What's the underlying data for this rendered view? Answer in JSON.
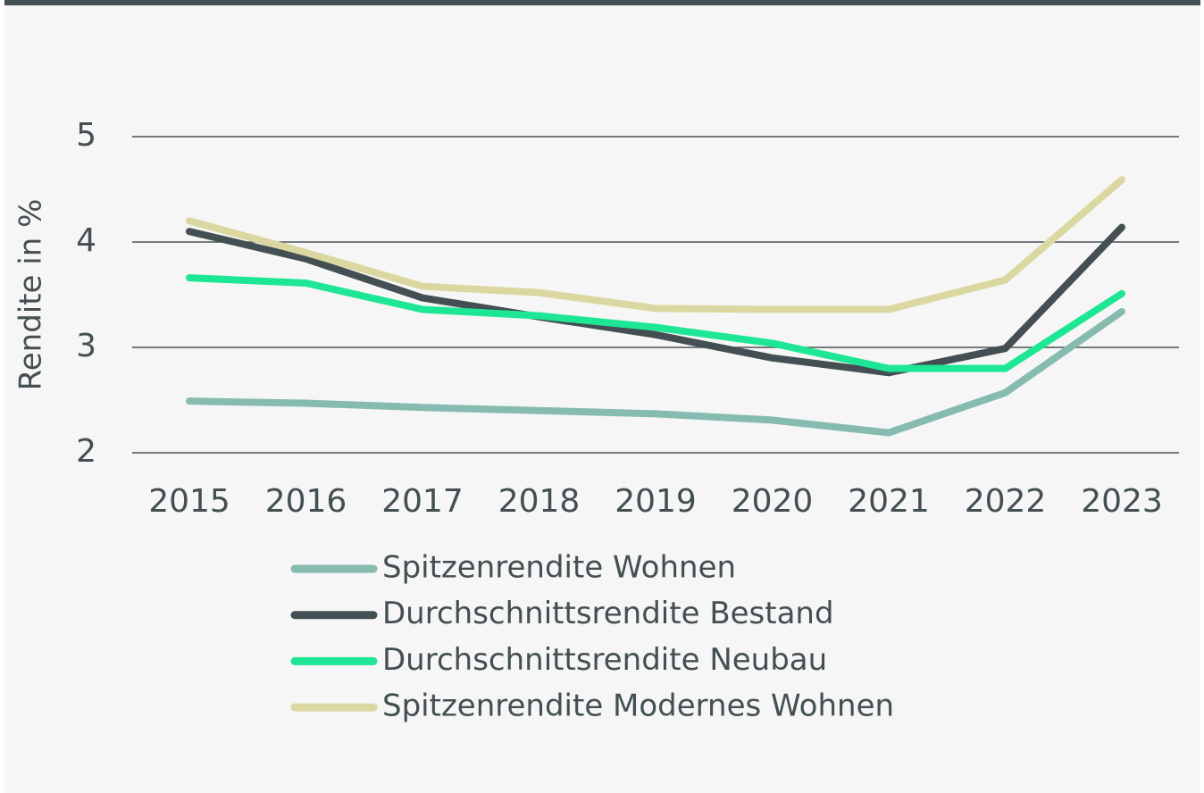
{
  "chart_data": {
    "type": "line",
    "y_label": "Rendite in %",
    "categories": [
      "2015",
      "2016",
      "2017",
      "2018",
      "2019",
      "2020",
      "2021",
      "2022",
      "2023"
    ],
    "ylim": [
      2,
      5
    ],
    "yticks": [
      2,
      3,
      4,
      5
    ],
    "grid": true,
    "series": [
      {
        "name": "Spitzenrendite Wohnen",
        "color": "#86bbb0",
        "values": [
          2.49,
          2.47,
          2.43,
          2.4,
          2.37,
          2.31,
          2.19,
          2.57,
          3.34
        ]
      },
      {
        "name": "Durchschnittsrendite Bestand",
        "color": "#434f52",
        "values": [
          4.1,
          3.84,
          3.47,
          3.29,
          3.12,
          2.9,
          2.76,
          2.99,
          4.14
        ]
      },
      {
        "name": "Durchschnittsrendite Neubau",
        "color": "#1de794",
        "values": [
          3.66,
          3.61,
          3.36,
          3.3,
          3.19,
          3.04,
          2.8,
          2.8,
          3.51
        ]
      },
      {
        "name": "Spitzenrendite Modernes Wohnen",
        "color": "#dad8a0",
        "values": [
          4.2,
          3.9,
          3.58,
          3.52,
          3.37,
          3.36,
          3.36,
          3.64,
          4.59
        ]
      }
    ]
  }
}
